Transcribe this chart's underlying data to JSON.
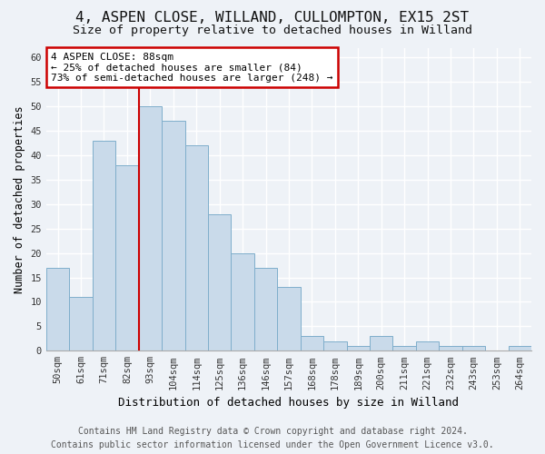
{
  "title1": "4, ASPEN CLOSE, WILLAND, CULLOMPTON, EX15 2ST",
  "title2": "Size of property relative to detached houses in Willand",
  "xlabel": "Distribution of detached houses by size in Willand",
  "ylabel": "Number of detached properties",
  "bar_labels": [
    "50sqm",
    "61sqm",
    "71sqm",
    "82sqm",
    "93sqm",
    "104sqm",
    "114sqm",
    "125sqm",
    "136sqm",
    "146sqm",
    "157sqm",
    "168sqm",
    "178sqm",
    "189sqm",
    "200sqm",
    "211sqm",
    "221sqm",
    "232sqm",
    "243sqm",
    "253sqm",
    "264sqm"
  ],
  "bar_values": [
    17,
    11,
    43,
    38,
    50,
    47,
    42,
    28,
    20,
    17,
    13,
    3,
    2,
    1,
    3,
    1,
    2,
    1,
    1,
    0,
    1
  ],
  "bar_color": "#c9daea",
  "bar_edge_color": "#7faecb",
  "red_line_x": 3.5,
  "annotation_line1": "4 ASPEN CLOSE: 88sqm",
  "annotation_line2": "← 25% of detached houses are smaller (84)",
  "annotation_line3": "73% of semi-detached houses are larger (248) →",
  "annotation_box_color": "#ffffff",
  "annotation_box_edge": "#cc0000",
  "vline_color": "#cc0000",
  "footer1": "Contains HM Land Registry data © Crown copyright and database right 2024.",
  "footer2": "Contains public sector information licensed under the Open Government Licence v3.0.",
  "ylim": [
    0,
    62
  ],
  "yticks": [
    0,
    5,
    10,
    15,
    20,
    25,
    30,
    35,
    40,
    45,
    50,
    55,
    60
  ],
  "background_color": "#eef2f7",
  "grid_color": "#ffffff",
  "title1_fontsize": 11.5,
  "title2_fontsize": 9.5,
  "tick_fontsize": 7.5,
  "ylabel_fontsize": 8.5,
  "xlabel_fontsize": 9,
  "ann_fontsize": 8,
  "footer_fontsize": 7
}
